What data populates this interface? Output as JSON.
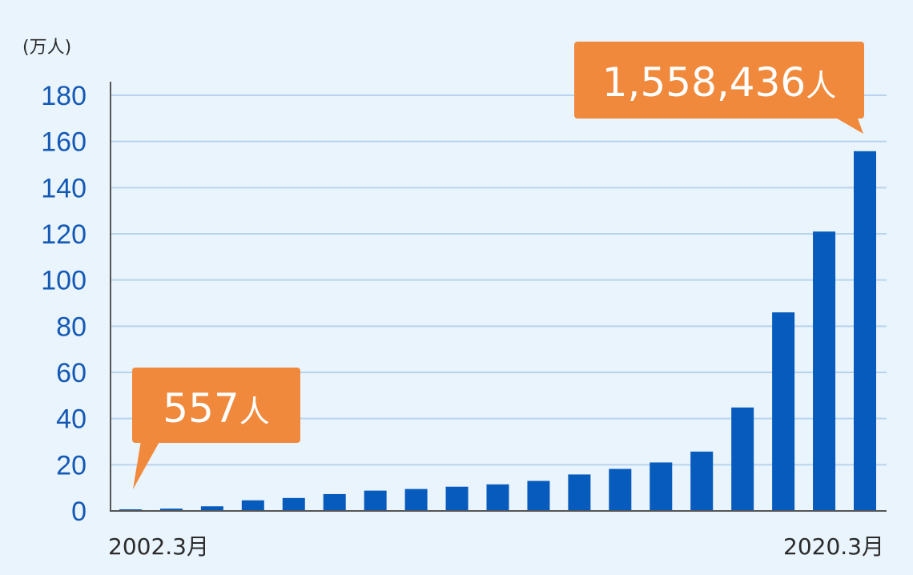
{
  "chart_data": {
    "type": "bar",
    "title": "",
    "xlabel": "",
    "ylabel": "",
    "unit_label": "(万人)",
    "ylim": [
      0,
      180
    ],
    "yticks": [
      "0",
      "20",
      "40",
      "60",
      "80",
      "100",
      "120",
      "140",
      "160",
      "180"
    ],
    "grid": true,
    "categories": [
      "2002.3月",
      "",
      "",
      "",
      "",
      "",
      "",
      "",
      "",
      "",
      "",
      "",
      "",
      "",
      "",
      "",
      "",
      "",
      "2020.3月"
    ],
    "values": [
      0.06,
      1.0,
      2.0,
      4.6,
      5.6,
      7.3,
      8.8,
      9.5,
      10.5,
      11.5,
      13.0,
      15.8,
      18.2,
      21.0,
      25.7,
      44.8,
      86.0,
      121.0,
      155.8
    ],
    "x_labels_shown": [
      "2002.3月",
      "2020.3月"
    ],
    "bar_color": "#065bbd",
    "grid_color": "#b8d3ee",
    "tick_color": "#1459b5",
    "callouts": [
      {
        "text": "557人",
        "number": "557",
        "suffix": "人",
        "bar_index": 0,
        "color": "#f0893c"
      },
      {
        "text": "1,558,436人",
        "number": "1,558,436",
        "suffix": "人",
        "bar_index": 18,
        "color": "#f0893c"
      }
    ]
  }
}
